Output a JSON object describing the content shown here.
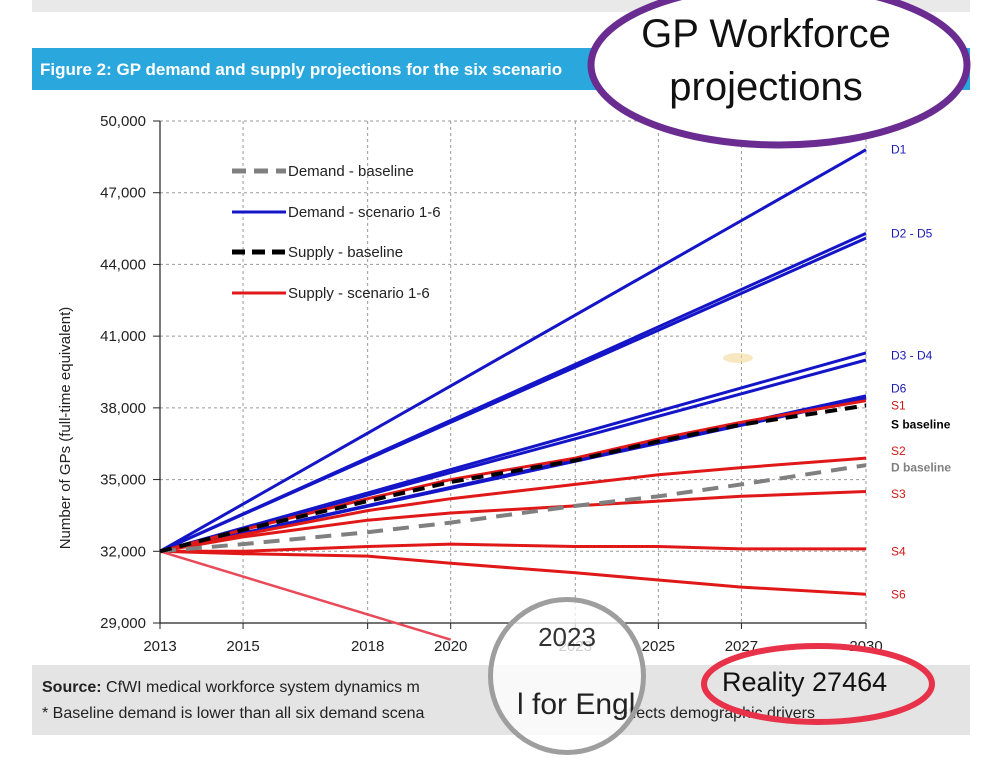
{
  "figure": {
    "title": "Figure 2: GP demand and supply projections for the six scenario"
  },
  "source": {
    "label": "Source:",
    "text": "CfWI medical workforce system dynamics m",
    "note_a": "* Baseline demand is lower than all six demand scena",
    "note_b": "reflects demographic drivers"
  },
  "overlay": {
    "bubble_line1": "GP Workforce",
    "bubble_line2": "projections",
    "reality_text": "Reality 27464",
    "magnifier_year": "2023",
    "magnifier_text": "l for Engla",
    "colors": {
      "purple": "#6a2c91",
      "red_ring": "#e8324a"
    }
  },
  "chart_data": {
    "type": "line",
    "ylabel": "Number of GPs (full-time equivalent)",
    "xlabel": "",
    "ylim": [
      29000,
      50000
    ],
    "yticks": [
      "29,000",
      "32,000",
      "35,000",
      "38,000",
      "41,000",
      "44,000",
      "47,000",
      "50,000"
    ],
    "xlim": [
      2013,
      2030
    ],
    "xticks": [
      "2013",
      "2015",
      "2018",
      "2020",
      "2023",
      "2025",
      "2027",
      "2030"
    ],
    "grid": true,
    "legend_position": "top-left",
    "legend": [
      {
        "label": "Demand - baseline",
        "color": "#808080",
        "style": "dashed"
      },
      {
        "label": "Demand - scenario 1-6",
        "color": "#1515c8",
        "style": "solid"
      },
      {
        "label": "Supply - baseline",
        "color": "#000000",
        "style": "dashed"
      },
      {
        "label": "Supply - scenario 1-6",
        "color": "#e01818",
        "style": "solid"
      }
    ],
    "series": [
      {
        "name": "D1",
        "group": "demand",
        "points": [
          [
            2013,
            32000
          ],
          [
            2030,
            48800
          ]
        ]
      },
      {
        "name": "D2 - D5",
        "group": "demand",
        "points": [
          [
            2013,
            32000
          ],
          [
            2030,
            45300
          ]
        ]
      },
      {
        "name": "",
        "group": "demand",
        "points": [
          [
            2013,
            32000
          ],
          [
            2030,
            45100
          ]
        ]
      },
      {
        "name": "D3 - D4",
        "group": "demand",
        "points": [
          [
            2013,
            32000
          ],
          [
            2030,
            40300
          ]
        ]
      },
      {
        "name": "",
        "group": "demand",
        "points": [
          [
            2013,
            32000
          ],
          [
            2030,
            40000
          ]
        ]
      },
      {
        "name": "D6",
        "group": "demand",
        "points": [
          [
            2013,
            32000
          ],
          [
            2030,
            38500
          ]
        ]
      },
      {
        "name": "",
        "group": "demand",
        "points": [
          [
            2013,
            32000
          ],
          [
            2030,
            38400
          ]
        ]
      },
      {
        "name": "D baseline",
        "group": "demand_baseline",
        "points": [
          [
            2013,
            32000
          ],
          [
            2015,
            32300
          ],
          [
            2018,
            32800
          ],
          [
            2020,
            33200
          ],
          [
            2023,
            33900
          ],
          [
            2025,
            34300
          ],
          [
            2027,
            34800
          ],
          [
            2030,
            35600
          ]
        ]
      },
      {
        "name": "S1",
        "group": "supply",
        "points": [
          [
            2013,
            32000
          ],
          [
            2015,
            32900
          ],
          [
            2018,
            34200
          ],
          [
            2020,
            35000
          ],
          [
            2023,
            35900
          ],
          [
            2025,
            36700
          ],
          [
            2027,
            37400
          ],
          [
            2030,
            38300
          ]
        ]
      },
      {
        "name": "S baseline",
        "group": "supply_baseline",
        "points": [
          [
            2013,
            32000
          ],
          [
            2015,
            32900
          ],
          [
            2018,
            34100
          ],
          [
            2020,
            34900
          ],
          [
            2023,
            35800
          ],
          [
            2025,
            36600
          ],
          [
            2027,
            37300
          ],
          [
            2030,
            38100
          ]
        ]
      },
      {
        "name": "S2",
        "group": "supply",
        "points": [
          [
            2013,
            32000
          ],
          [
            2015,
            32700
          ],
          [
            2018,
            33700
          ],
          [
            2020,
            34200
          ],
          [
            2023,
            34800
          ],
          [
            2025,
            35200
          ],
          [
            2027,
            35500
          ],
          [
            2030,
            35900
          ]
        ]
      },
      {
        "name": "S3",
        "group": "supply",
        "points": [
          [
            2013,
            32000
          ],
          [
            2015,
            32600
          ],
          [
            2018,
            33300
          ],
          [
            2020,
            33600
          ],
          [
            2023,
            33900
          ],
          [
            2025,
            34100
          ],
          [
            2027,
            34300
          ],
          [
            2030,
            34500
          ]
        ]
      },
      {
        "name": "S4",
        "group": "supply",
        "points": [
          [
            2013,
            32000
          ],
          [
            2015,
            32000
          ],
          [
            2018,
            32200
          ],
          [
            2020,
            32300
          ],
          [
            2023,
            32200
          ],
          [
            2025,
            32200
          ],
          [
            2027,
            32100
          ],
          [
            2030,
            32100
          ]
        ]
      },
      {
        "name": "S6",
        "group": "supply",
        "points": [
          [
            2013,
            32000
          ],
          [
            2015,
            31900
          ],
          [
            2018,
            31800
          ],
          [
            2020,
            31500
          ],
          [
            2023,
            31100
          ],
          [
            2025,
            30800
          ],
          [
            2027,
            30500
          ],
          [
            2030,
            30200
          ]
        ]
      },
      {
        "name": "",
        "group": "reality",
        "points": [
          [
            2013,
            32000
          ],
          [
            2020,
            28300
          ]
        ]
      }
    ],
    "end_labels": [
      {
        "text": "D1",
        "y": 48800,
        "color": "#1a1ab0"
      },
      {
        "text": "D2 - D5",
        "y": 45300,
        "color": "#1a1ab0"
      },
      {
        "text": "D3 - D4",
        "y": 40200,
        "color": "#1a1ab0"
      },
      {
        "text": "D6",
        "y": 38800,
        "color": "#1a1ab0"
      },
      {
        "text": "S1",
        "y": 38100,
        "color": "#d01818"
      },
      {
        "text": "S baseline",
        "y": 37300,
        "color": "#000000"
      },
      {
        "text": "S2",
        "y": 36200,
        "color": "#d01818"
      },
      {
        "text": "D baseline",
        "y": 35500,
        "color": "#808080"
      },
      {
        "text": "S3",
        "y": 34400,
        "color": "#d01818"
      },
      {
        "text": "S4",
        "y": 32000,
        "color": "#d01818"
      },
      {
        "text": "S6",
        "y": 30200,
        "color": "#d01818"
      }
    ]
  }
}
